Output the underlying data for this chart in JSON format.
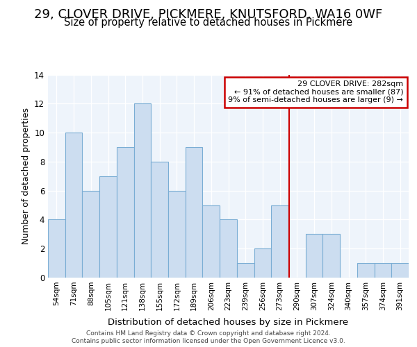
{
  "title1": "29, CLOVER DRIVE, PICKMERE, KNUTSFORD, WA16 0WF",
  "title2": "Size of property relative to detached houses in Pickmere",
  "xlabel": "Distribution of detached houses by size in Pickmere",
  "ylabel": "Number of detached properties",
  "categories": [
    "54sqm",
    "71sqm",
    "88sqm",
    "105sqm",
    "121sqm",
    "138sqm",
    "155sqm",
    "172sqm",
    "189sqm",
    "206sqm",
    "223sqm",
    "239sqm",
    "256sqm",
    "273sqm",
    "290sqm",
    "307sqm",
    "324sqm",
    "340sqm",
    "357sqm",
    "374sqm",
    "391sqm"
  ],
  "values": [
    4,
    10,
    6,
    7,
    9,
    12,
    8,
    6,
    9,
    5,
    4,
    1,
    2,
    5,
    0,
    3,
    3,
    0,
    1,
    1,
    1
  ],
  "bar_color": "#ccddf0",
  "bar_edge_color": "#7aadd4",
  "red_line_color": "#cc0000",
  "annotation_title": "29 CLOVER DRIVE: 282sqm",
  "annotation_line1": "← 91% of detached houses are smaller (87)",
  "annotation_line2": "9% of semi-detached houses are larger (9) →",
  "annotation_box_color": "#ffffff",
  "annotation_box_edge_color": "#cc0000",
  "ylim": [
    0,
    14
  ],
  "yticks": [
    0,
    2,
    4,
    6,
    8,
    10,
    12,
    14
  ],
  "footer1": "Contains HM Land Registry data © Crown copyright and database right 2024.",
  "footer2": "Contains public sector information licensed under the Open Government Licence v3.0.",
  "background_color": "#ffffff",
  "plot_bg_color": "#eef4fb",
  "grid_color": "#ffffff",
  "title1_fontsize": 13,
  "title2_fontsize": 10.5
}
